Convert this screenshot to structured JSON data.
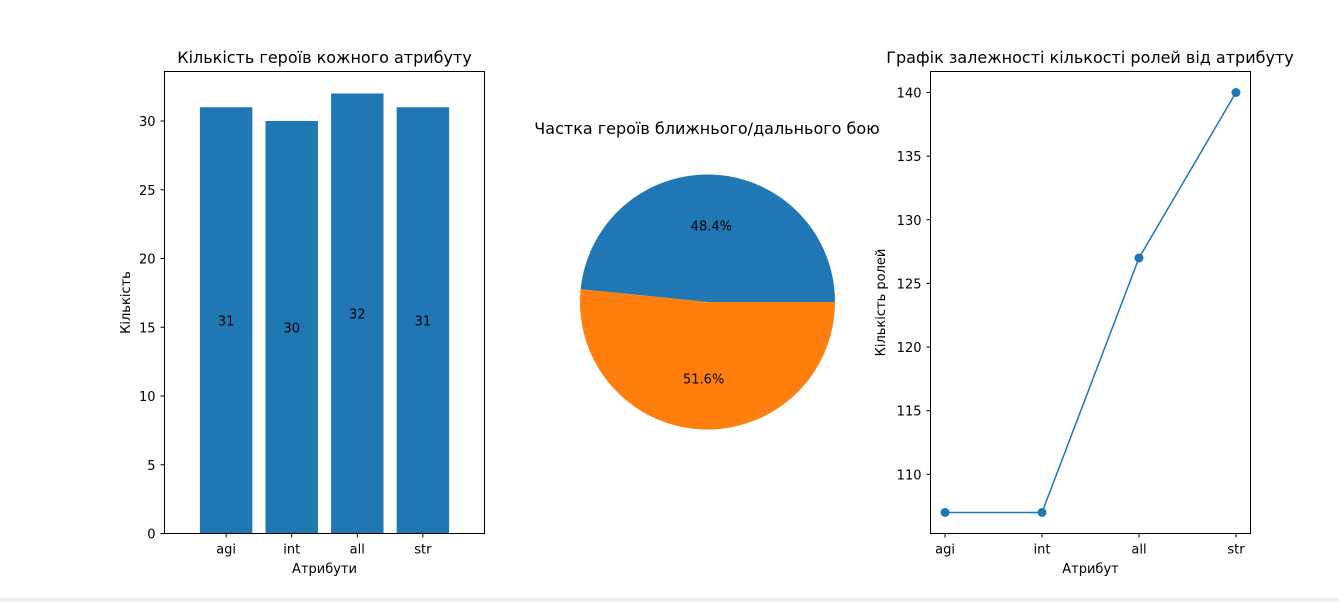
{
  "chart_data": [
    {
      "type": "bar",
      "title": "Кількість героїв кожного атрибуту",
      "xlabel": "Атрибути",
      "ylabel": "Кількість",
      "categories": [
        "agi",
        "int",
        "all",
        "str"
      ],
      "values": [
        31,
        30,
        32,
        31
      ],
      "value_labels": [
        "31",
        "30",
        "32",
        "31"
      ],
      "yticks": [
        "0",
        "5",
        "10",
        "15",
        "20",
        "25",
        "30"
      ],
      "ylim": [
        0,
        33.6
      ],
      "color": "#1f77b4"
    },
    {
      "type": "pie",
      "title": "Частка героїв ближнього/дальнього бою",
      "values": [
        48.4,
        51.6
      ],
      "labels": [
        "48.4%",
        "51.6%"
      ],
      "colors": [
        "#1f77b4",
        "#ff7f0e"
      ]
    },
    {
      "type": "line",
      "title": "Графік залежності кількості ролей від атрибуту",
      "xlabel": "Атрибут",
      "ylabel": "Кількість ролей",
      "categories": [
        "agi",
        "int",
        "all",
        "str"
      ],
      "values": [
        107,
        107,
        127,
        140
      ],
      "yticks": [
        "110",
        "115",
        "120",
        "125",
        "130",
        "135",
        "140"
      ],
      "ylim": [
        105.35,
        141.65
      ],
      "color": "#1f77b4",
      "marker": "circle"
    }
  ]
}
